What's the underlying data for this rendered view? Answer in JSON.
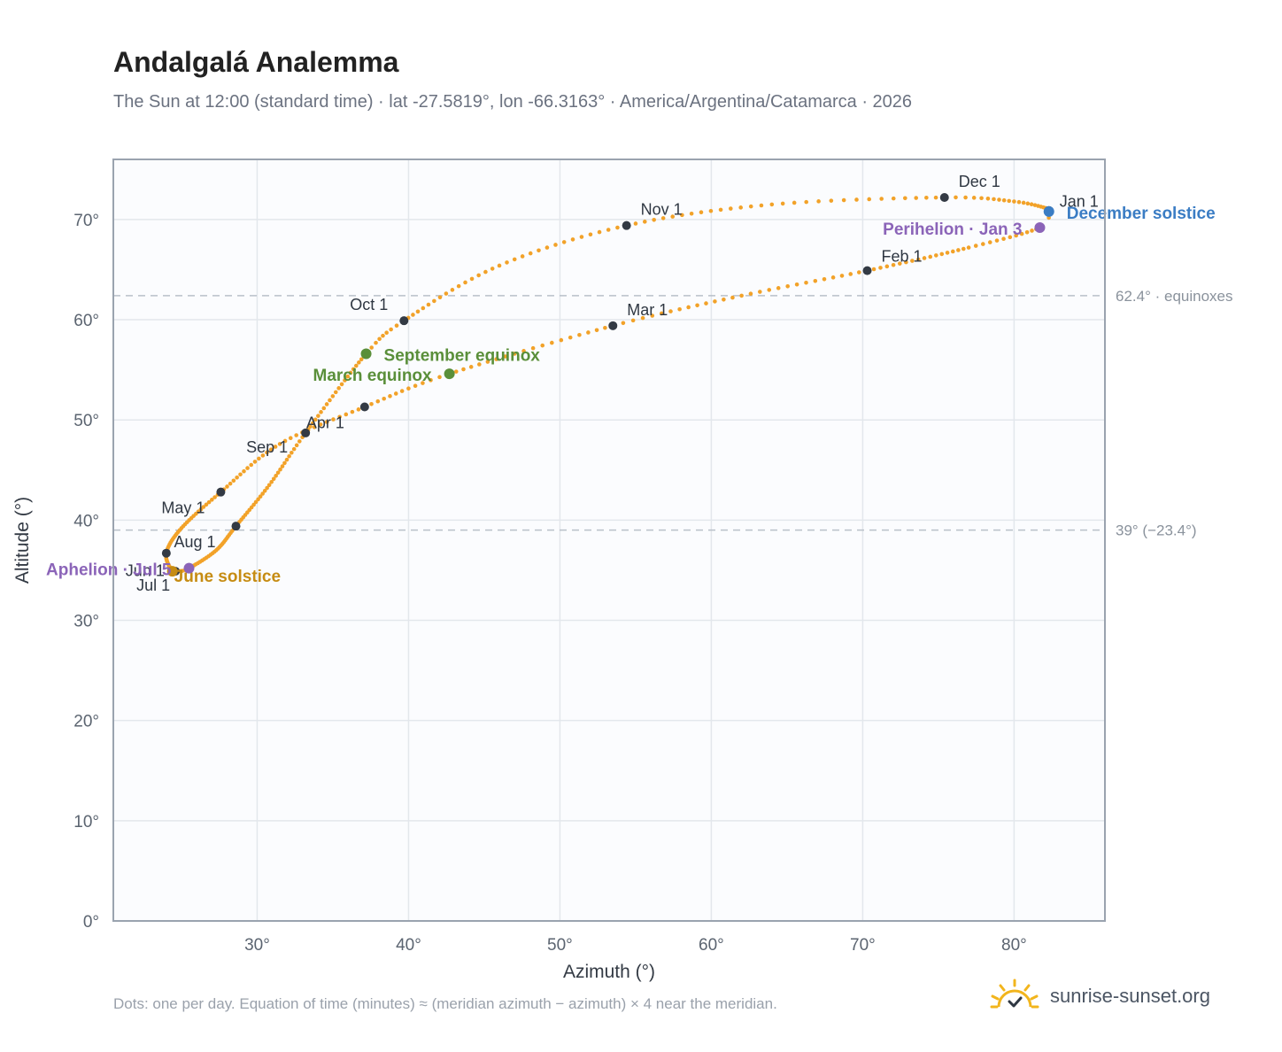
{
  "title": "Andalgalá Analemma",
  "subtitle": "The Sun at 12:00 (standard time) · lat -27.5819°, lon -66.3163° · America/Argentina/Catamarca · 2026",
  "footnote": "Dots: one per day. Equation of time (minutes) ≈ (meridian azimuth − azimuth) × 4 near the meridian.",
  "brand": "sunrise-sunset.org",
  "chart_data": {
    "type": "scatter",
    "xlabel": "Azimuth (°)",
    "ylabel": "Altitude (°)",
    "xlim": [
      20.5,
      86
    ],
    "ylim": [
      0,
      76
    ],
    "xticks": [
      30,
      40,
      50,
      60,
      70,
      80
    ],
    "yticks": [
      0,
      10,
      20,
      30,
      40,
      50,
      60,
      70
    ],
    "xtick_labels": [
      "30°",
      "40°",
      "50°",
      "60°",
      "70°",
      "80°"
    ],
    "ytick_labels": [
      "0°",
      "10°",
      "20°",
      "30°",
      "40°",
      "50°",
      "60°",
      "70°"
    ],
    "grid": true,
    "reference_lines": [
      {
        "y": 62.4,
        "label": "62.4° · equinoxes"
      },
      {
        "y": 39.0,
        "label": "39° (−23.4°)"
      }
    ],
    "curve_anchors": [
      {
        "d": 1,
        "x": 82.3,
        "y": 70.9
      },
      {
        "d": 3,
        "x": 81.7,
        "y": 69.2
      },
      {
        "d": 15,
        "x": 77.0,
        "y": 67.2
      },
      {
        "d": 32,
        "x": 70.3,
        "y": 64.9
      },
      {
        "d": 46,
        "x": 62.0,
        "y": 62.4
      },
      {
        "d": 60,
        "x": 53.5,
        "y": 59.4
      },
      {
        "d": 79,
        "x": 42.7,
        "y": 54.6
      },
      {
        "d": 91,
        "x": 37.1,
        "y": 51.3
      },
      {
        "d": 105,
        "x": 31.5,
        "y": 47.6
      },
      {
        "d": 121,
        "x": 27.6,
        "y": 42.8
      },
      {
        "d": 137,
        "x": 25.0,
        "y": 39.2
      },
      {
        "d": 152,
        "x": 24.0,
        "y": 36.7
      },
      {
        "d": 172,
        "x": 24.4,
        "y": 34.9
      },
      {
        "d": 182,
        "x": 24.8,
        "y": 34.9
      },
      {
        "d": 186,
        "x": 25.5,
        "y": 35.2
      },
      {
        "d": 200,
        "x": 27.3,
        "y": 37.0
      },
      {
        "d": 213,
        "x": 28.6,
        "y": 39.4
      },
      {
        "d": 229,
        "x": 30.8,
        "y": 43.5
      },
      {
        "d": 244,
        "x": 33.2,
        "y": 48.7
      },
      {
        "d": 266,
        "x": 37.2,
        "y": 56.6
      },
      {
        "d": 274,
        "x": 39.7,
        "y": 59.9
      },
      {
        "d": 290,
        "x": 46.0,
        "y": 65.4
      },
      {
        "d": 305,
        "x": 54.4,
        "y": 69.4
      },
      {
        "d": 320,
        "x": 64.0,
        "y": 71.5
      },
      {
        "d": 335,
        "x": 75.4,
        "y": 72.2
      },
      {
        "d": 345,
        "x": 80.0,
        "y": 71.8
      },
      {
        "d": 355,
        "x": 82.2,
        "y": 71.1
      },
      {
        "d": 365,
        "x": 82.3,
        "y": 70.9
      }
    ],
    "month_markers": [
      {
        "label": "Jan 1",
        "x": 82.3,
        "y": 70.9
      },
      {
        "label": "Feb 1",
        "x": 70.3,
        "y": 64.9
      },
      {
        "label": "Mar 1",
        "x": 53.5,
        "y": 59.4
      },
      {
        "label": "Apr 1",
        "x": 37.1,
        "y": 51.3
      },
      {
        "label": "May 1",
        "x": 27.6,
        "y": 42.8
      },
      {
        "label": "Jun 1",
        "x": 24.0,
        "y": 36.7
      },
      {
        "label": "Jul 1",
        "x": 24.6,
        "y": 34.9
      },
      {
        "label": "Aug 1",
        "x": 28.6,
        "y": 39.4
      },
      {
        "label": "Sep 1",
        "x": 33.2,
        "y": 48.7
      },
      {
        "label": "Oct 1",
        "x": 39.7,
        "y": 59.9
      },
      {
        "label": "Nov 1",
        "x": 54.4,
        "y": 69.4
      },
      {
        "label": "Dec 1",
        "x": 75.4,
        "y": 72.2
      }
    ],
    "events": [
      {
        "label": "December solstice",
        "x": 82.3,
        "y": 70.8,
        "color": "#3b7dc4"
      },
      {
        "label": "Perihelion · Jan 3",
        "x": 81.7,
        "y": 69.2,
        "color": "#8b64b8"
      },
      {
        "label": "March equinox",
        "x": 42.7,
        "y": 54.6,
        "color": "#5a8f3a"
      },
      {
        "label": "September equinox",
        "x": 37.2,
        "y": 56.6,
        "color": "#5a8f3a"
      },
      {
        "label": "June solstice",
        "x": 24.4,
        "y": 34.9,
        "color": "#c68c13"
      },
      {
        "label": "Aphelion · Jul 5",
        "x": 25.5,
        "y": 35.2,
        "color": "#8b64b8"
      }
    ],
    "colors": {
      "curve": "#f2a229",
      "marker": "#333a44",
      "grid": "#e3e7ec",
      "frame": "#9aa3af",
      "plot_bg": "#fbfcfe"
    }
  }
}
